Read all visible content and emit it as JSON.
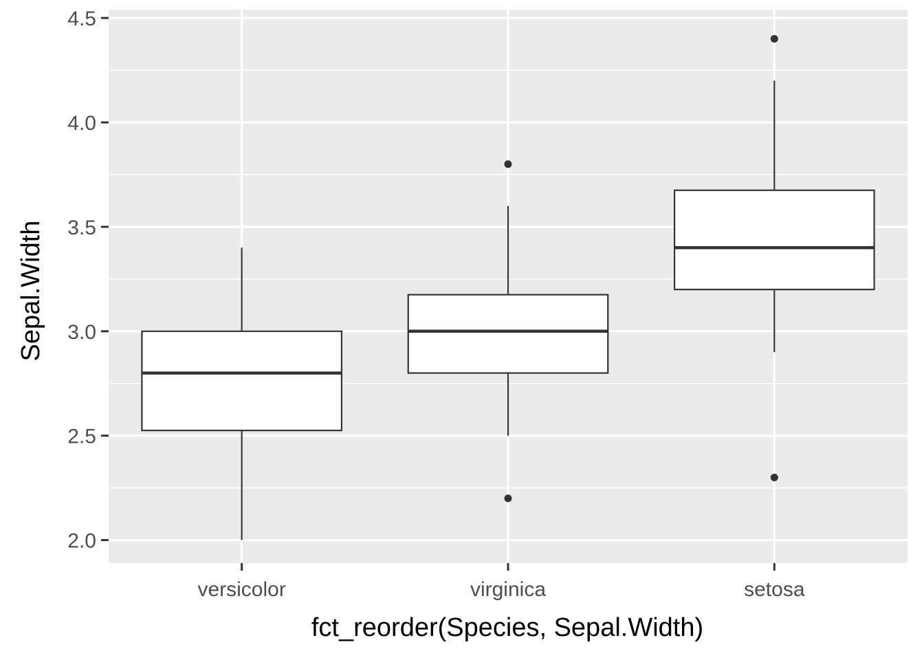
{
  "chart_data": {
    "type": "boxplot",
    "xlabel": "fct_reorder(Species, Sepal.Width)",
    "ylabel": "Sepal.Width",
    "ylim": [
      1.89,
      4.54
    ],
    "y_ticks": [
      "2.0",
      "2.5",
      "3.0",
      "3.5",
      "4.0",
      "4.5"
    ],
    "y_minor_ticks": [
      2.25,
      2.75,
      3.25,
      3.75,
      4.25
    ],
    "grid": true,
    "panel_background": "#ebebeb",
    "box_fill": "#ffffff",
    "line_color": "#333333",
    "categories": [
      "versicolor",
      "virginica",
      "setosa"
    ],
    "boxes": [
      {
        "category": "versicolor",
        "whisker_low": 2.0,
        "q1": 2.525,
        "median": 2.8,
        "q3": 3.0,
        "whisker_high": 3.4,
        "outliers": []
      },
      {
        "category": "virginica",
        "whisker_low": 2.5,
        "q1": 2.8,
        "median": 3.0,
        "q3": 3.175,
        "whisker_high": 3.6,
        "outliers": [
          3.8,
          2.2
        ]
      },
      {
        "category": "setosa",
        "whisker_low": 2.9,
        "q1": 3.2,
        "median": 3.4,
        "q3": 3.675,
        "whisker_high": 4.2,
        "outliers": [
          4.4,
          2.3
        ]
      }
    ]
  }
}
